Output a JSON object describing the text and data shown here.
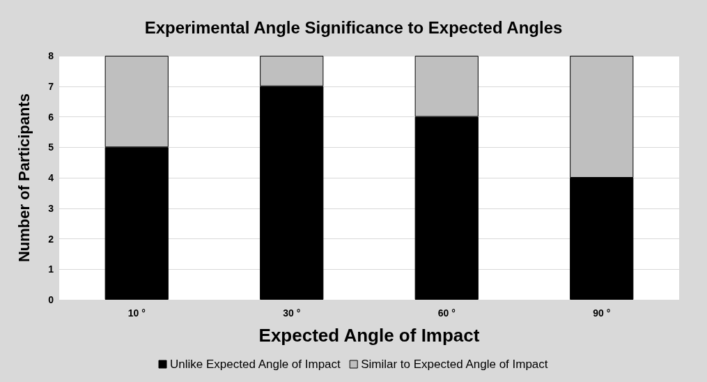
{
  "chart_data": {
    "type": "bar",
    "title": "Experimental Angle Significance to Expected Angles",
    "xlabel": "Expected Angle of Impact",
    "ylabel": "Number of Participants",
    "categories": [
      "10 °",
      "30 °",
      "60 °",
      "90 °"
    ],
    "series": [
      {
        "name": "Unlike Expected Angle of Impact",
        "color": "#000000",
        "values": [
          5,
          7,
          6,
          4
        ]
      },
      {
        "name": "Similar to Expected Angle of Impact",
        "color": "#bfbfbf",
        "values": [
          3,
          1,
          2,
          4
        ]
      }
    ],
    "stacked": true,
    "ylim": [
      0,
      8
    ],
    "yticks": [
      0,
      1,
      2,
      3,
      4,
      5,
      6,
      7,
      8
    ],
    "grid": "y",
    "legend": "bottom"
  }
}
